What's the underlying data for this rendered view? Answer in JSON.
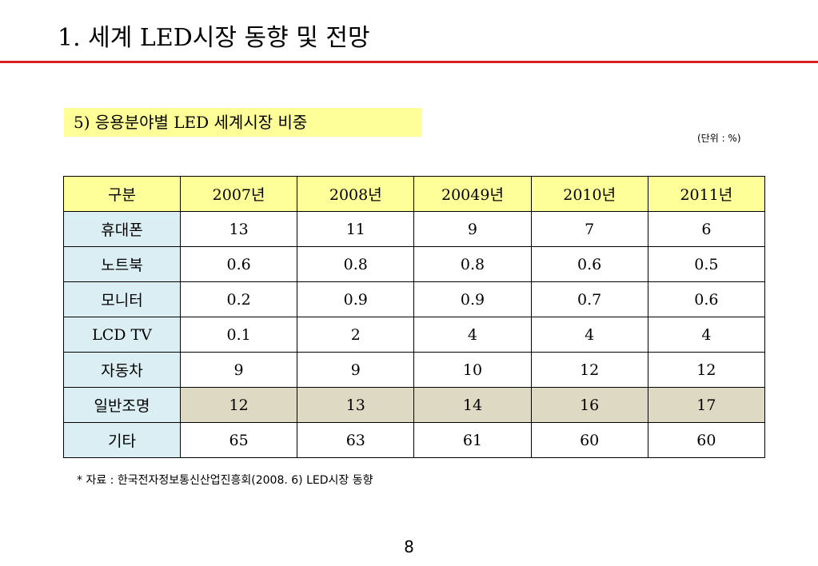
{
  "slide": {
    "title": "1. 세계 LED시장 동향 및 전망",
    "subtitle": "5) 응용분야별 LED 세계시장 비중",
    "unit": "(단위 : %)",
    "source": "* 자료 : 한국전자정보통신산업진흥회(2008. 6) LED시장 동향",
    "page_number": "8"
  },
  "colors": {
    "title_rule": "#d81e1e",
    "header_fill": "#ffff99",
    "row_label_fill": "#daeef3",
    "highlight_row_fill": "#ddd9c3"
  },
  "table": {
    "headers": [
      "구분",
      "2007년",
      "2008년",
      "20049년",
      "2010년",
      "2011년"
    ],
    "rows": [
      {
        "label": "휴대폰",
        "values": [
          "13",
          "11",
          "9",
          "7",
          "6"
        ]
      },
      {
        "label": "노트북",
        "values": [
          "0.6",
          "0.8",
          "0.8",
          "0.6",
          "0.5"
        ]
      },
      {
        "label": "모니터",
        "values": [
          "0.2",
          "0.9",
          "0.9",
          "0.7",
          "0.6"
        ]
      },
      {
        "label": "LCD TV",
        "values": [
          "0.1",
          "2",
          "4",
          "4",
          "4"
        ]
      },
      {
        "label": "자동차",
        "values": [
          "9",
          "9",
          "10",
          "12",
          "12"
        ]
      },
      {
        "label": "일반조명",
        "values": [
          "12",
          "13",
          "14",
          "16",
          "17"
        ],
        "highlighted": true
      },
      {
        "label": "기타",
        "values": [
          "65",
          "63",
          "61",
          "60",
          "60"
        ]
      }
    ]
  }
}
